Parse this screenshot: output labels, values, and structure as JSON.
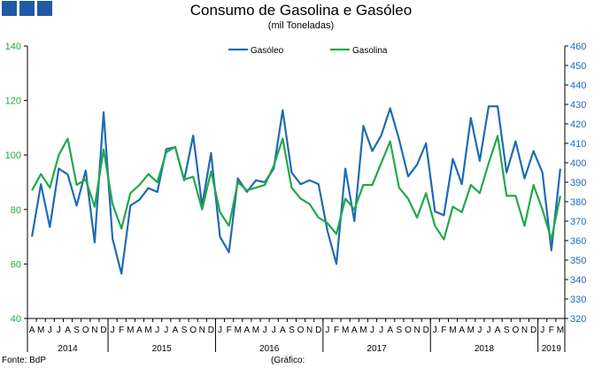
{
  "title": "Consumo de Gasolina e Gasóleo",
  "subtitle": "(mil Toneladas)",
  "source": "Fonte: BdP",
  "note": "(Gráfico:",
  "colors": {
    "gasoleo": "#1f6bb3",
    "gasolina": "#22a84a",
    "brand": "#1f5aa6"
  },
  "chart_data": {
    "type": "line",
    "months": [
      "A",
      "M",
      "J",
      "J",
      "A",
      "S",
      "O",
      "N",
      "D",
      "J",
      "F",
      "M",
      "A",
      "M",
      "J",
      "J",
      "A",
      "S",
      "O",
      "N",
      "D",
      "J",
      "F",
      "M",
      "A",
      "M",
      "J",
      "J",
      "A",
      "S",
      "O",
      "N",
      "D",
      "J",
      "F",
      "M",
      "A",
      "M",
      "J",
      "J",
      "A",
      "S",
      "O",
      "N",
      "D",
      "J",
      "F",
      "M",
      "A",
      "M",
      "J",
      "J",
      "A",
      "S",
      "O",
      "N",
      "D",
      "J",
      "F",
      "M"
    ],
    "years": [
      {
        "label": "2014",
        "start": 0,
        "end": 8
      },
      {
        "label": "2015",
        "start": 9,
        "end": 20
      },
      {
        "label": "2016",
        "start": 21,
        "end": 32
      },
      {
        "label": "2017",
        "start": 33,
        "end": 44
      },
      {
        "label": "2018",
        "start": 45,
        "end": 56
      },
      {
        "label": "2019",
        "start": 57,
        "end": 59
      }
    ],
    "y_left": {
      "min": 40,
      "max": 140,
      "ticks": [
        40,
        60,
        80,
        100,
        120,
        140
      ]
    },
    "y_right": {
      "min": 320,
      "max": 460,
      "ticks": [
        320,
        330,
        340,
        350,
        360,
        370,
        380,
        390,
        400,
        410,
        420,
        430,
        440,
        450,
        460
      ]
    },
    "legend_position": "top-center",
    "series": [
      {
        "name": "Gasóleo",
        "axis": "right",
        "values": [
          362,
          389,
          367,
          397,
          394,
          378,
          396,
          359,
          426,
          361,
          343,
          378,
          381,
          387,
          385,
          407,
          408,
          391,
          414,
          378,
          405,
          362,
          354,
          392,
          385,
          391,
          390,
          397,
          427,
          395,
          389,
          391,
          389,
          365,
          348,
          397,
          370,
          419,
          406,
          414,
          428,
          412,
          393,
          399,
          410,
          375,
          373,
          402,
          389,
          423,
          401,
          429,
          429,
          395,
          411,
          392,
          406,
          395,
          355,
          397
        ]
      },
      {
        "name": "Gasolina",
        "axis": "left",
        "values": [
          87,
          93,
          88,
          100,
          106,
          89,
          91,
          81,
          102,
          82,
          73,
          86,
          89,
          93,
          90,
          101,
          103,
          91,
          92,
          80,
          94,
          79,
          74,
          90,
          87,
          88,
          89,
          96,
          106,
          88,
          84,
          82,
          77,
          75,
          71,
          84,
          80,
          89,
          89,
          97,
          105,
          88,
          84,
          77,
          86,
          74,
          69,
          81,
          79,
          89,
          86,
          97,
          107,
          85,
          85,
          74,
          89,
          80,
          69,
          85
        ]
      }
    ]
  }
}
